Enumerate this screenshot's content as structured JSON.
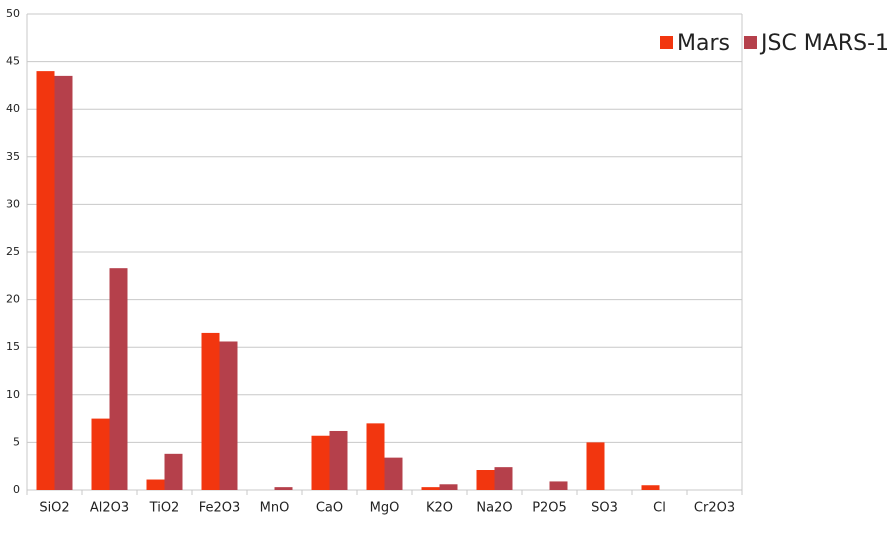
{
  "chart_data": {
    "type": "bar",
    "categories": [
      "SiO2",
      "Al2O3",
      "TiO2",
      "Fe2O3",
      "MnO",
      "CaO",
      "MgO",
      "K2O",
      "Na2O",
      "P2O5",
      "SO3",
      "Cl",
      "Cr2O3"
    ],
    "series": [
      {
        "name": "Mars",
        "color": "#f2360f",
        "values": [
          44,
          7.5,
          1.1,
          16.5,
          0,
          5.7,
          7.0,
          0.3,
          2.1,
          0,
          5.0,
          0.5,
          0
        ]
      },
      {
        "name": "JSC MARS-1",
        "color": "#b5404b",
        "values": [
          43.5,
          23.3,
          3.8,
          15.6,
          0.3,
          6.2,
          3.4,
          0.6,
          2.4,
          0.9,
          0,
          0,
          0
        ]
      }
    ],
    "ylim": [
      0,
      50
    ],
    "yticks": [
      0,
      5,
      10,
      15,
      20,
      25,
      30,
      35,
      40,
      45,
      50
    ],
    "grid": true,
    "legend": "top-right"
  }
}
